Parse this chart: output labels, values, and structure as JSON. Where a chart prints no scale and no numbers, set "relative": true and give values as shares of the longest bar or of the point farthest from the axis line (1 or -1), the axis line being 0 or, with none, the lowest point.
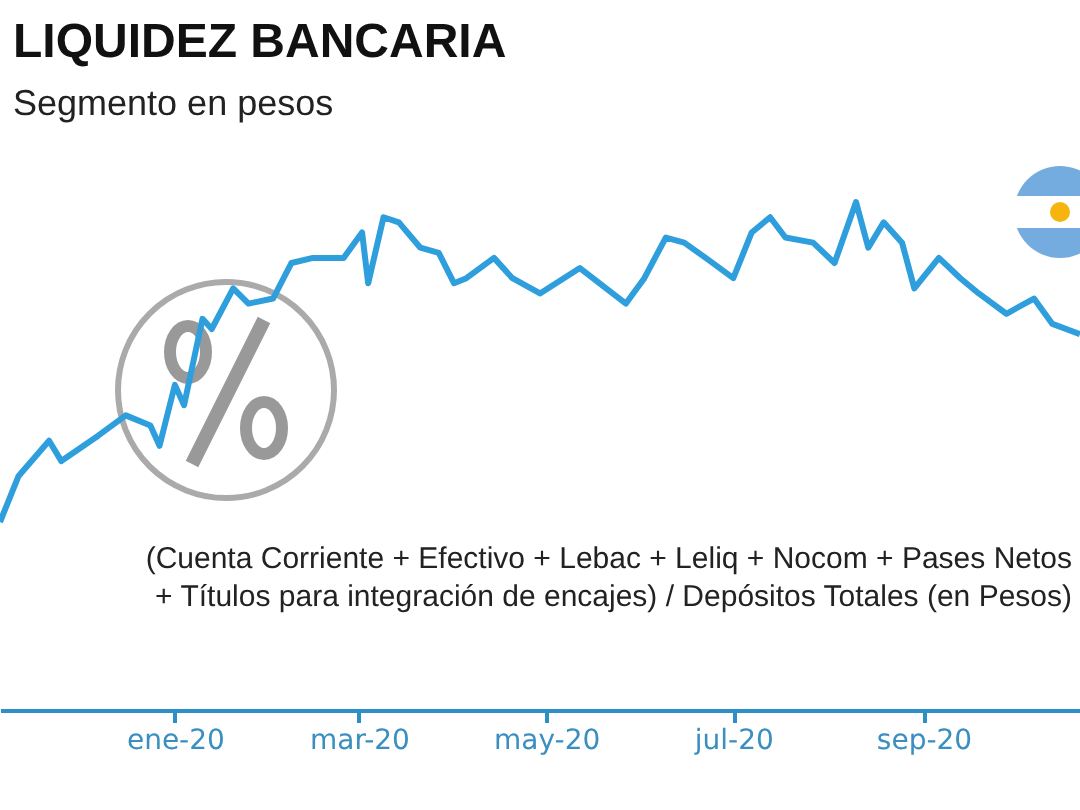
{
  "chart_data": {
    "type": "line",
    "title": "LIQUIDEZ BANCARIA",
    "subtitle": "Segmento en pesos",
    "relative": true,
    "annotations": [
      "(Cuenta Corriente + Efectivo + Lebac + Leliq + Nocom + Pases Netos + Títulos para integración de encajes) / Depósitos Totales (en Pesos)"
    ],
    "x": [
      "2019-11-05",
      "2019-11-11",
      "2019-11-21",
      "2019-11-25",
      "2019-12-07",
      "2019-12-16",
      "2019-12-24",
      "2019-12-27",
      "2020-01-01",
      "2020-01-04",
      "2020-01-10",
      "2020-01-13",
      "2020-01-20",
      "2020-01-25",
      "2020-02-02",
      "2020-02-08",
      "2020-02-15",
      "2020-02-25",
      "2020-03-02",
      "2020-03-04",
      "2020-03-09",
      "2020-03-14",
      "2020-03-21",
      "2020-03-27",
      "2020-04-01",
      "2020-04-05",
      "2020-04-14",
      "2020-04-20",
      "2020-04-29",
      "2020-05-12",
      "2020-05-27",
      "2020-06-02",
      "2020-06-09",
      "2020-06-15",
      "2020-06-22",
      "2020-07-01",
      "2020-07-07",
      "2020-07-13",
      "2020-07-18",
      "2020-07-27",
      "2020-08-03",
      "2020-08-10",
      "2020-08-14",
      "2020-08-19",
      "2020-08-25",
      "2020-08-29",
      "2020-09-06",
      "2020-09-13",
      "2020-09-19",
      "2020-09-28",
      "2020-10-07",
      "2020-10-13",
      "2020-10-22"
    ],
    "series": [
      {
        "color": "#2e9fdc",
        "values": [
          0.37,
          0.46,
          0.53,
          0.49,
          0.54,
          0.58,
          0.56,
          0.52,
          0.64,
          0.6,
          0.77,
          0.75,
          0.83,
          0.8,
          0.81,
          0.88,
          0.89,
          0.89,
          0.94,
          0.84,
          0.97,
          0.96,
          0.91,
          0.9,
          0.84,
          0.85,
          0.89,
          0.85,
          0.82,
          0.87,
          0.8,
          0.85,
          0.93,
          0.92,
          0.89,
          0.85,
          0.94,
          0.97,
          0.93,
          0.92,
          0.88,
          1,
          0.91,
          0.96,
          0.92,
          0.83,
          0.89,
          0.85,
          0.82,
          0.78,
          0.81,
          0.76,
          0.74
        ]
      }
    ],
    "xlim": [
      "2019-11-05",
      "2020-10-22"
    ],
    "xticks": [
      {
        "value": "2020-01",
        "label": "ene-20"
      },
      {
        "value": "2020-03",
        "label": "mar-20"
      },
      {
        "value": "2020-05",
        "label": "may-20"
      },
      {
        "value": "2020-07",
        "label": "jul-20"
      },
      {
        "value": "2020-09",
        "label": "sep-20"
      }
    ],
    "marker": "none",
    "line_style": "solid",
    "grid": false,
    "legend": false
  }
}
